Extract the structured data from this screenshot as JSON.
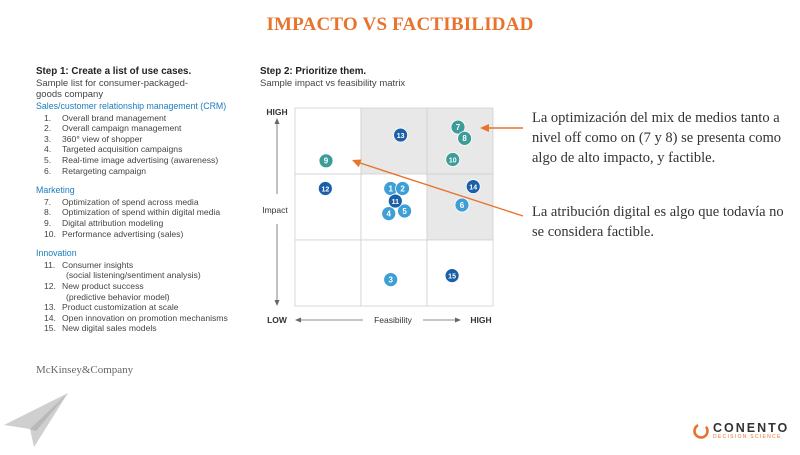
{
  "title": "IMPACTO VS FACTIBILIDAD",
  "step1": {
    "title": "Step 1: Create a list of use cases.",
    "subtitle_line1": "Sample list for consumer-packaged-",
    "subtitle_line2": "goods company"
  },
  "step2": {
    "title": "Step 2: Prioritize them.",
    "subtitle": "Sample impact vs feasibility matrix"
  },
  "sections": [
    {
      "title": "Sales/customer relationship management (CRM)",
      "items": [
        {
          "num": "1.",
          "text": "Overall brand management"
        },
        {
          "num": "2.",
          "text": "Overall campaign management"
        },
        {
          "num": "3.",
          "text": "360° view of shopper"
        },
        {
          "num": "4.",
          "text": "Targeted acquisition campaigns"
        },
        {
          "num": "5.",
          "text": "Real-time image advertising (awareness)"
        },
        {
          "num": "6.",
          "text": "Retargeting campaign"
        }
      ]
    },
    {
      "title": "Marketing",
      "items": [
        {
          "num": "7.",
          "text": "Optimization of spend across media"
        },
        {
          "num": "8.",
          "text": "Optimization of spend within digital media"
        },
        {
          "num": "9.",
          "text": "Digital attribution modeling"
        },
        {
          "num": "10.",
          "text": "Performance advertising (sales)"
        }
      ]
    },
    {
      "title": "Innovation",
      "items": [
        {
          "num": "11.",
          "text": "Consumer insights",
          "sub": "(social listening/sentiment analysis)"
        },
        {
          "num": "12.",
          "text": "New product success",
          "sub": "(predictive behavior model)"
        },
        {
          "num": "13.",
          "text": "Product customization at scale"
        },
        {
          "num": "14.",
          "text": "Open innovation on promotion mechanisms"
        },
        {
          "num": "15.",
          "text": "New digital sales models"
        }
      ]
    }
  ],
  "source": "McKinsey&Company",
  "matrix": {
    "y_axis_high": "HIGH",
    "y_axis_label": "Impact",
    "x_axis_low": "LOW",
    "x_axis_label": "Feasibility",
    "x_axis_high": "HIGH",
    "shaded_cells": [
      [
        1,
        0
      ],
      [
        2,
        0
      ],
      [
        2,
        1
      ]
    ],
    "colors": {
      "light": "#3d9fd6",
      "dark": "#1a5fa8",
      "teal": "#3c9c98",
      "shade": "#e8e8e8",
      "grid": "#d0d0d0"
    },
    "points": [
      {
        "label": "1",
        "feasibility": 1.45,
        "impact": 1.78,
        "color": "light"
      },
      {
        "label": "2",
        "feasibility": 1.63,
        "impact": 1.78,
        "color": "light"
      },
      {
        "label": "3",
        "feasibility": 1.45,
        "impact": 0.4,
        "color": "light"
      },
      {
        "label": "4",
        "feasibility": 1.42,
        "impact": 1.4,
        "color": "light"
      },
      {
        "label": "5",
        "feasibility": 1.66,
        "impact": 1.44,
        "color": "light"
      },
      {
        "label": "6",
        "feasibility": 2.53,
        "impact": 1.53,
        "color": "light"
      },
      {
        "label": "7",
        "feasibility": 2.47,
        "impact": 2.71,
        "color": "teal"
      },
      {
        "label": "8",
        "feasibility": 2.57,
        "impact": 2.54,
        "color": "teal"
      },
      {
        "label": "9",
        "feasibility": 0.47,
        "impact": 2.2,
        "color": "teal"
      },
      {
        "label": "10",
        "feasibility": 2.39,
        "impact": 2.22,
        "color": "teal"
      },
      {
        "label": "11",
        "feasibility": 1.52,
        "impact": 1.59,
        "color": "dark"
      },
      {
        "label": "12",
        "feasibility": 0.46,
        "impact": 1.78,
        "color": "dark"
      },
      {
        "label": "13",
        "feasibility": 1.6,
        "impact": 2.59,
        "color": "dark"
      },
      {
        "label": "14",
        "feasibility": 2.7,
        "impact": 1.81,
        "color": "dark"
      },
      {
        "label": "15",
        "feasibility": 2.38,
        "impact": 0.46,
        "color": "dark"
      }
    ]
  },
  "callouts": [
    {
      "text": "La optimización del mix de medios tanto a nivel off como on (7 y 8) se presenta como algo de alto impacto, y factible."
    },
    {
      "text": "La atribución digital es algo que todavía no se considera factible."
    }
  ],
  "accent_color": "#e8732c",
  "logo": {
    "name": "CONENTO",
    "tagline": "DECISION SCIENCE"
  }
}
